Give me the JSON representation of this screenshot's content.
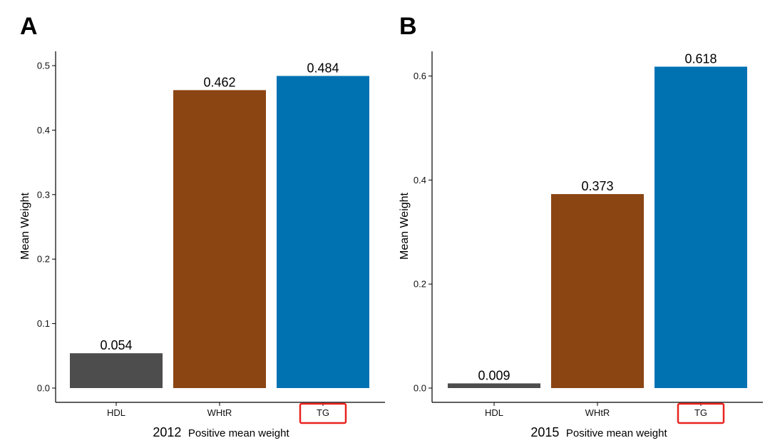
{
  "colors": {
    "HDL": "#4d4d4d",
    "WHtR": "#8b4513",
    "TG": "#0072b2",
    "highlight": "#e8231f"
  },
  "chart_data": [
    {
      "type": "bar",
      "panel_label": "A",
      "categories": [
        "HDL",
        "WHtR",
        "TG"
      ],
      "values": [
        0.054,
        0.462,
        0.484
      ],
      "value_labels": [
        "0.054",
        "0.462",
        "0.484"
      ],
      "ylabel": "Mean Weight",
      "xlabel_year": "2012",
      "xlabel_rest": "Positive mean weight",
      "ylim": [
        0,
        0.5
      ],
      "yticks": [
        "0.0",
        "0.1",
        "0.2",
        "0.3",
        "0.4",
        "0.5"
      ],
      "ytick_values": [
        0,
        0.1,
        0.2,
        0.3,
        0.4,
        0.5
      ],
      "highlighted_category": "TG",
      "grid": false,
      "legend": "none"
    },
    {
      "type": "bar",
      "panel_label": "B",
      "categories": [
        "HDL",
        "WHtR",
        "TG"
      ],
      "values": [
        0.009,
        0.373,
        0.618
      ],
      "value_labels": [
        "0.009",
        "0.373",
        "0.618"
      ],
      "ylabel": "Mean Weight",
      "xlabel_year": "2015",
      "xlabel_rest": "Positive mean weight",
      "ylim": [
        0,
        0.62
      ],
      "yticks": [
        "0.0",
        "0.2",
        "0.4",
        "0.6"
      ],
      "ytick_values": [
        0,
        0.2,
        0.4,
        0.6
      ],
      "highlighted_category": "TG",
      "grid": false,
      "legend": "none"
    }
  ]
}
